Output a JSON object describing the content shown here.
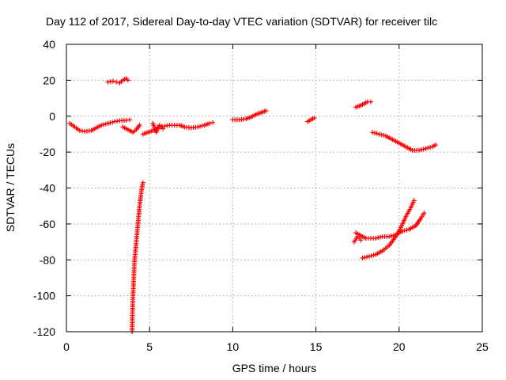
{
  "chart_data": {
    "type": "scatter",
    "title": "Day 112 of 2017, Sidereal Day-to-day VTEC variation (SDTVAR) for receiver tilc",
    "xlabel": "GPS time / hours",
    "ylabel": "SDTVAR / TECUs",
    "xlim": [
      0,
      25
    ],
    "ylim": [
      -120,
      40
    ],
    "xticks": [
      0,
      5,
      10,
      15,
      20,
      25
    ],
    "yticks": [
      -120,
      -100,
      -80,
      -60,
      -40,
      -20,
      0,
      20,
      40
    ],
    "grid": true,
    "marker": "+",
    "color": "#ff0000",
    "segments": [
      [
        [
          0.2,
          -4
        ],
        [
          0.5,
          -6
        ],
        [
          0.8,
          -8
        ],
        [
          1.1,
          -8.5
        ],
        [
          1.5,
          -8
        ],
        [
          1.8,
          -6.5
        ],
        [
          2.1,
          -5
        ],
        [
          2.5,
          -4
        ],
        [
          2.9,
          -3
        ],
        [
          3.2,
          -2.5
        ],
        [
          3.6,
          -2.3
        ],
        [
          3.8,
          -2
        ]
      ],
      [
        [
          2.5,
          19
        ],
        [
          2.8,
          19.5
        ],
        [
          3.0,
          19
        ],
        [
          3.2,
          18.5
        ],
        [
          3.4,
          20
        ],
        [
          3.6,
          21
        ],
        [
          3.7,
          20
        ]
      ],
      [
        [
          3.4,
          -6
        ],
        [
          3.6,
          -7
        ],
        [
          3.8,
          -8
        ],
        [
          4.0,
          -9
        ],
        [
          4.2,
          -7.5
        ],
        [
          4.4,
          -5
        ]
      ],
      [
        [
          4.6,
          -10
        ],
        [
          4.9,
          -9
        ],
        [
          5.2,
          -8
        ],
        [
          5.4,
          -7
        ],
        [
          5.6,
          -6
        ],
        [
          5.9,
          -5.5
        ],
        [
          6.2,
          -5
        ],
        [
          6.5,
          -5
        ],
        [
          6.8,
          -5
        ],
        [
          7.1,
          -6
        ],
        [
          7.5,
          -6.5
        ],
        [
          7.9,
          -6
        ],
        [
          8.3,
          -5
        ],
        [
          8.6,
          -4
        ],
        [
          8.8,
          -3.5
        ]
      ],
      [
        [
          5.2,
          -4
        ],
        [
          5.4,
          -9
        ],
        [
          5.6,
          -5
        ],
        [
          5.8,
          -7
        ]
      ],
      [
        [
          3.95,
          -120
        ],
        [
          3.97,
          -110
        ],
        [
          4.0,
          -100
        ],
        [
          4.05,
          -90
        ],
        [
          4.1,
          -80
        ],
        [
          4.2,
          -70
        ],
        [
          4.3,
          -60
        ],
        [
          4.4,
          -50
        ],
        [
          4.5,
          -42
        ],
        [
          4.6,
          -37
        ]
      ],
      [
        [
          10.0,
          -2
        ],
        [
          10.4,
          -2
        ],
        [
          10.8,
          -1.5
        ],
        [
          11.1,
          -0.5
        ],
        [
          11.4,
          1
        ],
        [
          11.7,
          2
        ],
        [
          12.0,
          3
        ]
      ],
      [
        [
          14.5,
          -3
        ],
        [
          14.7,
          -2
        ],
        [
          14.9,
          -1
        ]
      ],
      [
        [
          17.4,
          5
        ],
        [
          17.7,
          6
        ],
        [
          17.9,
          7
        ],
        [
          18.1,
          8
        ],
        [
          18.3,
          8
        ]
      ],
      [
        [
          18.4,
          -9
        ],
        [
          18.8,
          -10
        ],
        [
          19.2,
          -11
        ],
        [
          19.6,
          -13
        ],
        [
          20.0,
          -15
        ],
        [
          20.4,
          -17
        ],
        [
          20.8,
          -19
        ],
        [
          21.2,
          -19
        ],
        [
          21.6,
          -18
        ],
        [
          22.0,
          -17
        ],
        [
          22.2,
          -16
        ]
      ],
      [
        [
          17.4,
          -65
        ],
        [
          17.6,
          -66
        ],
        [
          17.8,
          -67
        ],
        [
          18.0,
          -68
        ],
        [
          18.3,
          -68
        ],
        [
          18.6,
          -68
        ],
        [
          19.0,
          -67
        ],
        [
          19.4,
          -67
        ],
        [
          19.8,
          -66
        ],
        [
          20.2,
          -64
        ],
        [
          20.6,
          -63
        ],
        [
          21.0,
          -61
        ],
        [
          21.3,
          -57
        ],
        [
          21.5,
          -54
        ]
      ],
      [
        [
          17.3,
          -70
        ],
        [
          17.5,
          -67
        ],
        [
          17.7,
          -69
        ]
      ],
      [
        [
          17.8,
          -79
        ],
        [
          18.2,
          -78
        ],
        [
          18.6,
          -77
        ],
        [
          19.0,
          -75
        ],
        [
          19.4,
          -72
        ],
        [
          19.8,
          -67
        ],
        [
          20.1,
          -62
        ],
        [
          20.4,
          -56
        ],
        [
          20.7,
          -51
        ],
        [
          20.9,
          -47
        ]
      ]
    ]
  }
}
